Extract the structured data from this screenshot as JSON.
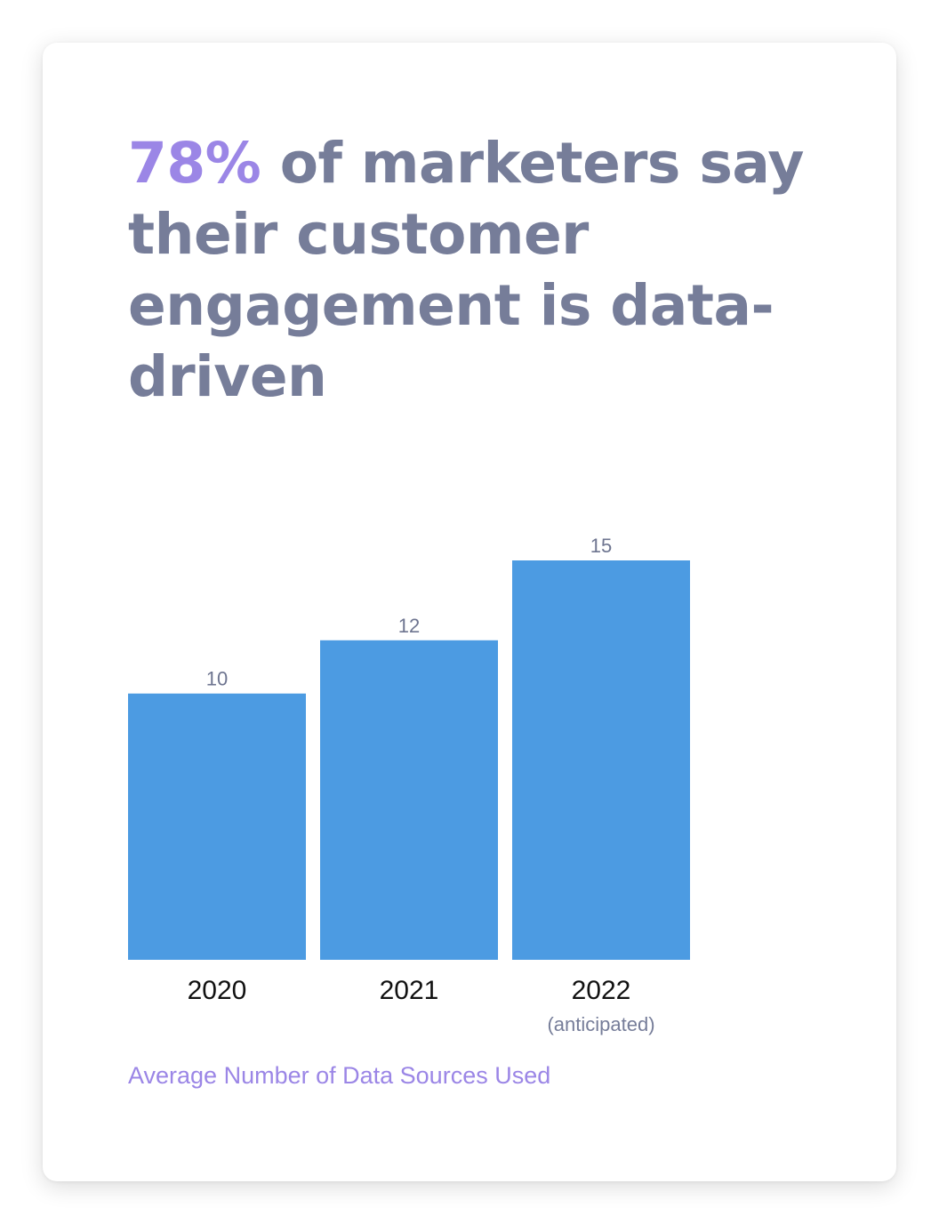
{
  "headline": {
    "highlight": "78%",
    "text": " of marketers say their customer engagement is data-driven"
  },
  "colors": {
    "accent": "#9b86e6",
    "headline": "#767d99",
    "bar": "#4c9be2",
    "value_label": "#6e7590",
    "category_label": "#111111",
    "sublabel": "#767d99"
  },
  "chart_data": {
    "type": "bar",
    "title": "Average Number of Data Sources Used",
    "categories": [
      "2020",
      "2021",
      "2022"
    ],
    "category_sublabels": [
      "",
      "",
      "(anticipated)"
    ],
    "values": [
      10,
      12,
      15
    ],
    "value_labels": [
      "10",
      "12",
      "15"
    ],
    "xlabel": "",
    "ylabel": "",
    "ylim": [
      0,
      15
    ],
    "grid": false,
    "legend": "none"
  }
}
